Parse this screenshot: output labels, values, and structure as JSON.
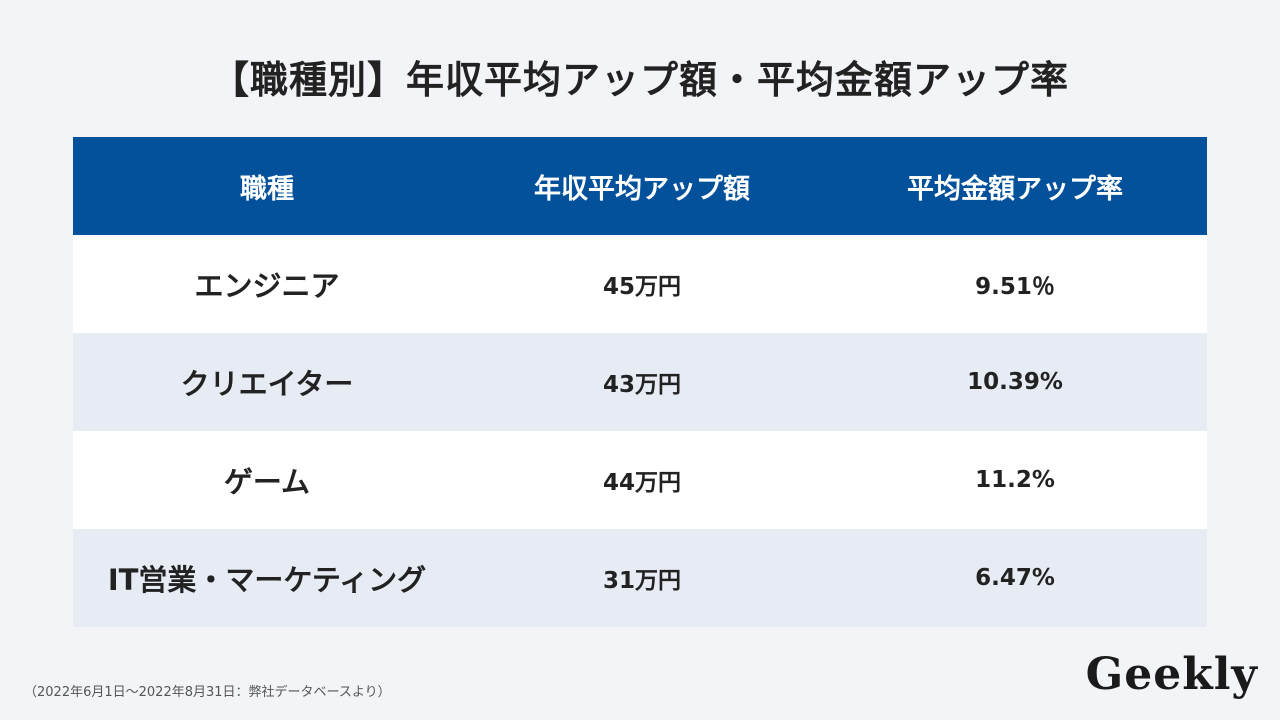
{
  "title": "【職種別】年収平均アップ額・平均金額アップ率",
  "table": {
    "headers": [
      "職種",
      "年収平均アップ額",
      "平均金額アップ率"
    ],
    "rows": [
      {
        "job": "エンジニア",
        "amount": "45万円",
        "rate": "9.51％"
      },
      {
        "job": "クリエイター",
        "amount": "43万円",
        "rate": "10.39%"
      },
      {
        "job": "ゲーム",
        "amount": "44万円",
        "rate": "11.2%"
      },
      {
        "job": "IT営業・マーケティング",
        "amount": "31万円",
        "rate": "6.47%"
      }
    ]
  },
  "footnote": "（2022年6月1日〜2022年8月31日：弊社データベースより）",
  "logo": "Geekly",
  "colors": {
    "header_bg": "#03519a",
    "row_odd_bg": "#ffffff",
    "row_even_bg": "#e6ebf4",
    "page_bg": "#f2f4f8"
  }
}
